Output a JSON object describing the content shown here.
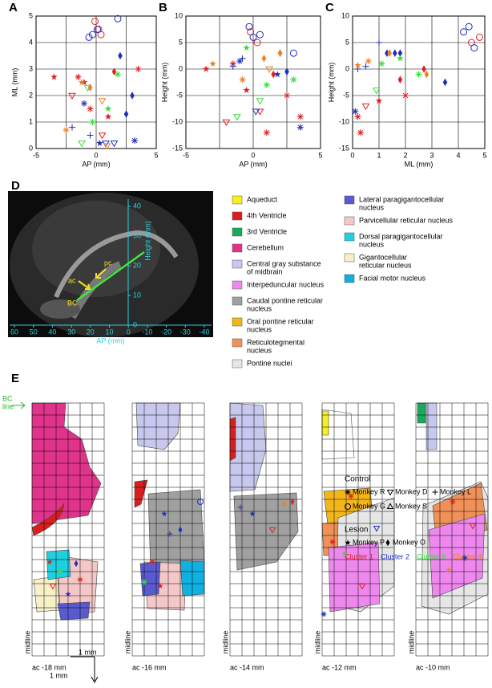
{
  "chart_data": [
    {
      "type": "scatter",
      "panel": "A",
      "x_label": "AP (mm)",
      "y_label": "ML (mm)",
      "xlim": [
        -5,
        5
      ],
      "xticks": [
        -5,
        0,
        5
      ],
      "xminor": [
        -2.5,
        2.5
      ],
      "ylim": [
        0,
        5
      ],
      "yticks": [
        0,
        1,
        2,
        3,
        4,
        5
      ],
      "grid": true,
      "series": [
        {
          "color": "#e31e24",
          "x": [
            -0.1,
            0.2,
            0.4,
            -1.5,
            -1.0,
            1.5,
            3.5,
            -2.0,
            -0.5,
            1.0,
            -3.5,
            0.5
          ],
          "values": [
            4.8,
            4.5,
            4.3,
            2.7,
            2.5,
            2.9,
            3.0,
            2.0,
            1.5,
            1.2,
            2.7,
            0.5
          ],
          "markers": [
            "circle",
            "circle",
            "circle",
            "asterisk",
            "star",
            "diamond",
            "asterisk",
            "triangle-down",
            "asterisk",
            "star",
            "star",
            "triangle-down"
          ]
        },
        {
          "color": "#1f2fbf",
          "x": [
            -0.6,
            -0.3,
            0.1,
            1.8,
            2.0,
            3.0,
            2.5,
            -1.0,
            -0.5,
            0.3,
            0.8,
            1.5,
            3.2,
            -2.0
          ],
          "values": [
            4.2,
            4.3,
            4.5,
            4.9,
            3.5,
            2.0,
            1.3,
            1.7,
            0.5,
            0.2,
            0.2,
            0.2,
            0.3,
            0.8
          ],
          "markers": [
            "circle",
            "circle",
            "circle",
            "circle",
            "diamond",
            "diamond",
            "diamond",
            "asterisk",
            "plus",
            "star",
            "triangle-down",
            "triangle-down",
            "asterisk",
            "plus"
          ]
        },
        {
          "color": "#3adb3a",
          "x": [
            1.8,
            -0.7,
            -0.3,
            -1.2,
            1.0
          ],
          "values": [
            2.8,
            2.3,
            1.0,
            0.2,
            1.5
          ],
          "markers": [
            "asterisk",
            "triangle-down",
            "asterisk",
            "triangle-down",
            "star"
          ]
        },
        {
          "color": "#f07f20",
          "x": [
            -1.2,
            -0.5,
            0.5,
            -2.5,
            0.9
          ],
          "values": [
            2.5,
            2.3,
            1.8,
            0.7,
            0.1
          ],
          "markers": [
            "star",
            "diamond",
            "triangle-down",
            "asterisk",
            "triangle-down"
          ]
        }
      ]
    },
    {
      "type": "scatter",
      "panel": "B",
      "x_label": "AP (mm)",
      "y_label": "Height (mm)",
      "xlim": [
        -5,
        5
      ],
      "xticks": [
        -5,
        0,
        5
      ],
      "xminor": [
        -2.5,
        2.5
      ],
      "ylim": [
        -15,
        10
      ],
      "yticks": [
        -15,
        -10,
        -5,
        0,
        5,
        10
      ],
      "grid": true,
      "series": [
        {
          "color": "#e31e24",
          "x": [
            -0.2,
            0.3,
            -1.5,
            1.5,
            2.5,
            3.5,
            -2.0,
            -0.5,
            1.0,
            0.5,
            -3.5
          ],
          "values": [
            7,
            5,
            1,
            -1,
            -5,
            -9,
            -10,
            -4,
            -12,
            -8,
            0
          ],
          "markers": [
            "circle",
            "circle",
            "asterisk",
            "diamond",
            "asterisk",
            "asterisk",
            "triangle-down",
            "star",
            "asterisk",
            "triangle-down",
            "star"
          ]
        },
        {
          "color": "#1f2fbf",
          "x": [
            0,
            0.5,
            -0.3,
            2.0,
            3.0,
            2.5,
            -1.5,
            -0.8,
            0.2,
            3.5,
            1.8,
            -1.0
          ],
          "values": [
            6,
            6.5,
            8,
            3,
            3,
            -0.5,
            0.5,
            2,
            -8,
            -11,
            -1,
            1.5
          ],
          "markers": [
            "circle",
            "circle",
            "circle",
            "diamond",
            "circle",
            "diamond",
            "plus",
            "plus",
            "triangle-down",
            "asterisk",
            "star",
            "asterisk"
          ]
        },
        {
          "color": "#3adb3a",
          "x": [
            -0.5,
            1.0,
            -1.2,
            3.0,
            0.5
          ],
          "values": [
            4,
            -3,
            -9,
            -2,
            -6
          ],
          "markers": [
            "star",
            "asterisk",
            "triangle-down",
            "asterisk",
            "triangle-down"
          ]
        },
        {
          "color": "#f07f20",
          "x": [
            -3.0,
            0.8,
            2.0,
            1.2,
            -0.8
          ],
          "values": [
            1,
            2,
            3,
            0,
            -2
          ],
          "markers": [
            "star",
            "diamond",
            "diamond",
            "triangle-down",
            "asterisk"
          ]
        }
      ]
    },
    {
      "type": "scatter",
      "panel": "C",
      "x_label": "ML (mm)",
      "y_label": "Height (mm)",
      "xlim": [
        0,
        5
      ],
      "xticks": [
        0,
        1,
        2,
        3,
        4,
        5
      ],
      "xminor": [],
      "ylim": [
        -15,
        10
      ],
      "yticks": [
        -15,
        -10,
        -5,
        0,
        5,
        10
      ],
      "grid": true,
      "series": [
        {
          "color": "#e31e24",
          "x": [
            4.8,
            4.5,
            0.3,
            1.0,
            2.0,
            1.8,
            0.5,
            0.2,
            2.7
          ],
          "values": [
            6,
            5,
            -12,
            -6,
            -5,
            -2,
            -7,
            -9,
            0
          ],
          "markers": [
            "circle",
            "circle",
            "asterisk",
            "star",
            "asterisk",
            "diamond",
            "triangle-down",
            "asterisk",
            "diamond"
          ]
        },
        {
          "color": "#1f2fbf",
          "x": [
            4.2,
            4.4,
            4.6,
            1.3,
            1.6,
            1.8,
            0.2,
            0.5,
            0.1,
            3.5,
            1.0
          ],
          "values": [
            7,
            8,
            4,
            3,
            3,
            3,
            0,
            0.5,
            -8,
            -2.5,
            5
          ],
          "markers": [
            "circle",
            "circle",
            "circle",
            "diamond",
            "diamond",
            "diamond",
            "plus",
            "plus",
            "asterisk",
            "diamond",
            "plus"
          ]
        },
        {
          "color": "#3adb3a",
          "x": [
            1.8,
            2.5,
            0.9,
            1.1
          ],
          "values": [
            2,
            -1,
            -4,
            1
          ],
          "markers": [
            "star",
            "asterisk",
            "triangle-down",
            "asterisk"
          ]
        },
        {
          "color": "#f07f20",
          "x": [
            1.4,
            0.2,
            0.6,
            2.8
          ],
          "values": [
            3,
            0.7,
            1.5,
            -1
          ],
          "markers": [
            "diamond",
            "star",
            "asterisk",
            "diamond"
          ]
        }
      ]
    }
  ],
  "panel_d": {
    "panel": "D",
    "x_label": "AP (mm)",
    "y_label": "Height (mm)",
    "xlim": [
      60,
      -40
    ],
    "xticks": [
      60,
      50,
      40,
      30,
      20,
      10,
      0,
      -10,
      -20,
      -30,
      -40
    ],
    "ylim": [
      0,
      40
    ],
    "yticks": [
      0,
      10,
      20,
      30,
      40
    ],
    "ac": "ac",
    "pc": "pc",
    "bc": "BC"
  },
  "region_legend": [
    [
      {
        "label": [
          "Aqueduct"
        ],
        "color": "#f5f020"
      },
      {
        "label": [
          "4th Ventricle"
        ],
        "color": "#d81e1e"
      },
      {
        "label": [
          "3rd Ventricle"
        ],
        "color": "#1aaa5a"
      },
      {
        "label": [
          "Cerebellum"
        ],
        "color": "#e0338a"
      },
      {
        "label": [
          "Central gray substance",
          "of midbrain"
        ],
        "color": "#c8c8ee"
      },
      {
        "label": [
          "Interpeduncular nucleus"
        ],
        "color": "#ee88ee"
      },
      {
        "label": [
          "Caudal pontine reticular",
          "nucleus"
        ],
        "color": "#a0a0a0"
      },
      {
        "label": [
          "Oral pontine reticular",
          "nucleus"
        ],
        "color": "#f2b61a"
      },
      {
        "label": [
          "Reticulotegmental",
          "nucleus"
        ],
        "color": "#f0915a"
      },
      {
        "label": [
          "Pontine nuclei"
        ],
        "color": "#e6e6e6"
      }
    ],
    [
      {
        "label": [
          "Lateral paragigantocellular",
          "nucleus"
        ],
        "color": "#5a5ad0"
      },
      {
        "label": [
          "Parvicellular reticular nucleus"
        ],
        "color": "#f5c8c8"
      },
      {
        "label": [
          "Dorsal paragigantocellular",
          "nucleus"
        ],
        "color": "#20d0e0"
      },
      {
        "label": [
          "Gigantocellular",
          "reticular nucleus"
        ],
        "color": "#f8f0c8"
      },
      {
        "label": [
          "Facial motor nucleus"
        ],
        "color": "#10b0e0"
      }
    ]
  ],
  "legend": {
    "control_title": "Control",
    "control": [
      {
        "label": "Monkey R",
        "marker": "asterisk"
      },
      {
        "label": "Monkey D",
        "marker": "triangle-down"
      },
      {
        "label": "Monkey L",
        "marker": "plus"
      },
      {
        "label": "Monkey G",
        "marker": "circle"
      },
      {
        "label": "Monkey S",
        "marker": "triangle-up"
      }
    ],
    "lesion_title": "Lesion",
    "lesion": [
      {
        "label": "Monkey P",
        "marker": "star"
      },
      {
        "label": "Monkey O",
        "marker": "diamond"
      }
    ],
    "clusters": [
      {
        "label": "Cluster 1",
        "color": "#e31e24"
      },
      {
        "label": "Cluster 2",
        "color": "#1f2fbf"
      },
      {
        "label": "Cluster 3",
        "color": "#3adb3a"
      },
      {
        "label": "Cluster 4",
        "color": "#f07f20"
      }
    ]
  },
  "panel_e": {
    "panel": "E",
    "bc_line": [
      "BC",
      "line"
    ],
    "sections": [
      "ac -18 mm",
      "ac -16 mm",
      "ac -14 mm",
      "ac -12 mm",
      "ac -10 mm"
    ],
    "midline": "midline",
    "scale": [
      "1 mm",
      "1 mm"
    ]
  }
}
